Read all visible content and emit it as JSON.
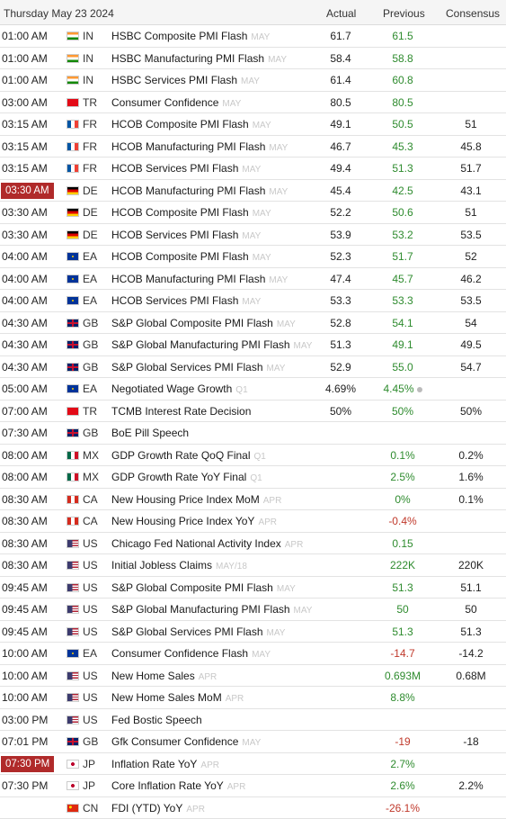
{
  "header": {
    "date": "Thursday May 23 2024",
    "actual": "Actual",
    "previous": "Previous",
    "consensus": "Consensus"
  },
  "flag_colors": {
    "IN": [
      "#ff9933",
      "#ffffff",
      "#138808"
    ],
    "TR": [
      "#e30a17"
    ],
    "FR": [
      "#0055a4",
      "#ffffff",
      "#ef4135"
    ],
    "DE": [
      "#000000",
      "#dd0000",
      "#ffce00"
    ],
    "EA": [
      "#003399"
    ],
    "GB": [
      "#012169",
      "#c8102e"
    ],
    "MX": [
      "#006847",
      "#ffffff",
      "#ce1126"
    ],
    "CA": [
      "#d52b1e",
      "#ffffff",
      "#d52b1e"
    ],
    "US": [
      "#b22234",
      "#ffffff",
      "#3c3b6e"
    ],
    "JP": [
      "#ffffff",
      "#bc002d"
    ],
    "CN": [
      "#de2910",
      "#ffde00"
    ]
  },
  "rows": [
    {
      "time": "01:00 AM",
      "hl": false,
      "cc": "IN",
      "event": "HSBC Composite PMI Flash",
      "ref": "MAY",
      "actual": "61.7",
      "previous": "61.5",
      "prev_color": "green",
      "consensus": ""
    },
    {
      "time": "01:00 AM",
      "hl": false,
      "cc": "IN",
      "event": "HSBC Manufacturing PMI Flash",
      "ref": "MAY",
      "actual": "58.4",
      "previous": "58.8",
      "prev_color": "green",
      "consensus": ""
    },
    {
      "time": "01:00 AM",
      "hl": false,
      "cc": "IN",
      "event": "HSBC Services PMI Flash",
      "ref": "MAY",
      "actual": "61.4",
      "previous": "60.8",
      "prev_color": "green",
      "consensus": ""
    },
    {
      "time": "03:00 AM",
      "hl": false,
      "cc": "TR",
      "event": "Consumer Confidence",
      "ref": "MAY",
      "actual": "80.5",
      "previous": "80.5",
      "prev_color": "green",
      "consensus": ""
    },
    {
      "time": "03:15 AM",
      "hl": false,
      "cc": "FR",
      "event": "HCOB Composite PMI Flash",
      "ref": "MAY",
      "actual": "49.1",
      "previous": "50.5",
      "prev_color": "green",
      "consensus": "51"
    },
    {
      "time": "03:15 AM",
      "hl": false,
      "cc": "FR",
      "event": "HCOB Manufacturing PMI Flash",
      "ref": "MAY",
      "actual": "46.7",
      "previous": "45.3",
      "prev_color": "green",
      "consensus": "45.8"
    },
    {
      "time": "03:15 AM",
      "hl": false,
      "cc": "FR",
      "event": "HCOB Services PMI Flash",
      "ref": "MAY",
      "actual": "49.4",
      "previous": "51.3",
      "prev_color": "green",
      "consensus": "51.7"
    },
    {
      "time": "03:30 AM",
      "hl": true,
      "cc": "DE",
      "event": "HCOB Manufacturing PMI Flash",
      "ref": "MAY",
      "actual": "45.4",
      "previous": "42.5",
      "prev_color": "green",
      "consensus": "43.1"
    },
    {
      "time": "03:30 AM",
      "hl": false,
      "cc": "DE",
      "event": "HCOB Composite PMI Flash",
      "ref": "MAY",
      "actual": "52.2",
      "previous": "50.6",
      "prev_color": "green",
      "consensus": "51"
    },
    {
      "time": "03:30 AM",
      "hl": false,
      "cc": "DE",
      "event": "HCOB Services PMI Flash",
      "ref": "MAY",
      "actual": "53.9",
      "previous": "53.2",
      "prev_color": "green",
      "consensus": "53.5"
    },
    {
      "time": "04:00 AM",
      "hl": false,
      "cc": "EA",
      "event": "HCOB Composite PMI Flash",
      "ref": "MAY",
      "actual": "52.3",
      "previous": "51.7",
      "prev_color": "green",
      "consensus": "52"
    },
    {
      "time": "04:00 AM",
      "hl": false,
      "cc": "EA",
      "event": "HCOB Manufacturing PMI Flash",
      "ref": "MAY",
      "actual": "47.4",
      "previous": "45.7",
      "prev_color": "green",
      "consensus": "46.2"
    },
    {
      "time": "04:00 AM",
      "hl": false,
      "cc": "EA",
      "event": "HCOB Services PMI Flash",
      "ref": "MAY",
      "actual": "53.3",
      "previous": "53.3",
      "prev_color": "green",
      "consensus": "53.5"
    },
    {
      "time": "04:30 AM",
      "hl": false,
      "cc": "GB",
      "event": "S&P Global Composite PMI Flash",
      "ref": "MAY",
      "actual": "52.8",
      "previous": "54.1",
      "prev_color": "green",
      "consensus": "54"
    },
    {
      "time": "04:30 AM",
      "hl": false,
      "cc": "GB",
      "event": "S&P Global Manufacturing PMI Flash",
      "ref": "MAY",
      "actual": "51.3",
      "previous": "49.1",
      "prev_color": "green",
      "consensus": "49.5"
    },
    {
      "time": "04:30 AM",
      "hl": false,
      "cc": "GB",
      "event": "S&P Global Services PMI Flash",
      "ref": "MAY",
      "actual": "52.9",
      "previous": "55.0",
      "prev_color": "green",
      "consensus": "54.7"
    },
    {
      "time": "05:00 AM",
      "hl": false,
      "cc": "EA",
      "event": "Negotiated Wage Growth",
      "ref": "Q1",
      "actual": "4.69%",
      "previous": "4.45%",
      "prev_color": "green",
      "revised": true,
      "consensus": ""
    },
    {
      "time": "07:00 AM",
      "hl": false,
      "cc": "TR",
      "event": "TCMB Interest Rate Decision",
      "ref": "",
      "actual": "50%",
      "previous": "50%",
      "prev_color": "green",
      "consensus": "50%"
    },
    {
      "time": "07:30 AM",
      "hl": false,
      "cc": "GB",
      "event": "BoE Pill Speech",
      "ref": "",
      "actual": "",
      "previous": "",
      "prev_color": "green",
      "consensus": ""
    },
    {
      "time": "08:00 AM",
      "hl": false,
      "cc": "MX",
      "event": "GDP Growth Rate QoQ Final",
      "ref": "Q1",
      "actual": "",
      "previous": "0.1%",
      "prev_color": "green",
      "consensus": "0.2%"
    },
    {
      "time": "08:00 AM",
      "hl": false,
      "cc": "MX",
      "event": "GDP Growth Rate YoY Final",
      "ref": "Q1",
      "actual": "",
      "previous": "2.5%",
      "prev_color": "green",
      "consensus": "1.6%"
    },
    {
      "time": "08:30 AM",
      "hl": false,
      "cc": "CA",
      "event": "New Housing Price Index MoM",
      "ref": "APR",
      "actual": "",
      "previous": "0%",
      "prev_color": "green",
      "consensus": "0.1%"
    },
    {
      "time": "08:30 AM",
      "hl": false,
      "cc": "CA",
      "event": "New Housing Price Index YoY",
      "ref": "APR",
      "actual": "",
      "previous": "-0.4%",
      "prev_color": "red",
      "consensus": ""
    },
    {
      "time": "08:30 AM",
      "hl": false,
      "cc": "US",
      "event": "Chicago Fed National Activity Index",
      "ref": "APR",
      "actual": "",
      "previous": "0.15",
      "prev_color": "green",
      "consensus": ""
    },
    {
      "time": "08:30 AM",
      "hl": false,
      "cc": "US",
      "event": "Initial Jobless Claims",
      "ref": "MAY/18",
      "actual": "",
      "previous": "222K",
      "prev_color": "green",
      "consensus": "220K"
    },
    {
      "time": "09:45 AM",
      "hl": false,
      "cc": "US",
      "event": "S&P Global Composite PMI Flash",
      "ref": "MAY",
      "actual": "",
      "previous": "51.3",
      "prev_color": "green",
      "consensus": "51.1"
    },
    {
      "time": "09:45 AM",
      "hl": false,
      "cc": "US",
      "event": "S&P Global Manufacturing PMI Flash",
      "ref": "MAY",
      "actual": "",
      "previous": "50",
      "prev_color": "green",
      "consensus": "50"
    },
    {
      "time": "09:45 AM",
      "hl": false,
      "cc": "US",
      "event": "S&P Global Services PMI Flash",
      "ref": "MAY",
      "actual": "",
      "previous": "51.3",
      "prev_color": "green",
      "consensus": "51.3"
    },
    {
      "time": "10:00 AM",
      "hl": false,
      "cc": "EA",
      "event": "Consumer Confidence Flash",
      "ref": "MAY",
      "actual": "",
      "previous": "-14.7",
      "prev_color": "red",
      "consensus": "-14.2"
    },
    {
      "time": "10:00 AM",
      "hl": false,
      "cc": "US",
      "event": "New Home Sales",
      "ref": "APR",
      "actual": "",
      "previous": "0.693M",
      "prev_color": "green",
      "consensus": "0.68M"
    },
    {
      "time": "10:00 AM",
      "hl": false,
      "cc": "US",
      "event": "New Home Sales MoM",
      "ref": "APR",
      "actual": "",
      "previous": "8.8%",
      "prev_color": "green",
      "consensus": ""
    },
    {
      "time": "03:00 PM",
      "hl": false,
      "cc": "US",
      "event": "Fed Bostic Speech",
      "ref": "",
      "actual": "",
      "previous": "",
      "prev_color": "green",
      "consensus": ""
    },
    {
      "time": "07:01 PM",
      "hl": false,
      "cc": "GB",
      "event": "Gfk Consumer Confidence",
      "ref": "MAY",
      "actual": "",
      "previous": "-19",
      "prev_color": "red",
      "consensus": "-18"
    },
    {
      "time": "07:30 PM",
      "hl": true,
      "cc": "JP",
      "event": "Inflation Rate YoY",
      "ref": "APR",
      "actual": "",
      "previous": "2.7%",
      "prev_color": "green",
      "consensus": ""
    },
    {
      "time": "07:30 PM",
      "hl": false,
      "cc": "JP",
      "event": "Core Inflation Rate YoY",
      "ref": "APR",
      "actual": "",
      "previous": "2.6%",
      "prev_color": "green",
      "consensus": "2.2%"
    },
    {
      "time": "",
      "hl": false,
      "cc": "CN",
      "event": "FDI (YTD) YoY",
      "ref": "APR",
      "actual": "",
      "previous": "-26.1%",
      "prev_color": "red",
      "consensus": ""
    }
  ]
}
